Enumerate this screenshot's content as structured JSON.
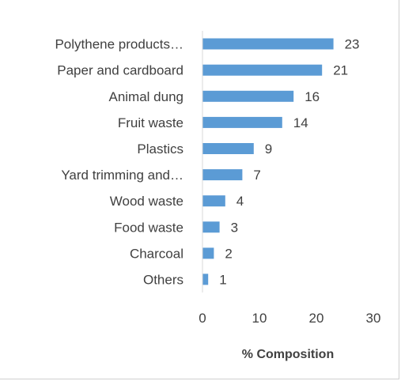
{
  "chart_data": {
    "type": "bar",
    "orientation": "horizontal",
    "categories": [
      "Polythene products…",
      "Paper and cardboard",
      "Animal dung",
      "Fruit waste",
      "Plastics",
      "Yard trimming and…",
      "Wood waste",
      "Food waste",
      "Charcoal",
      "Others"
    ],
    "values": [
      23,
      21,
      16,
      14,
      9,
      7,
      4,
      3,
      2,
      1
    ],
    "title": "",
    "xlabel": "% Composition",
    "ylabel": "",
    "xlim": [
      0,
      30
    ],
    "xticks": [
      0,
      10,
      20,
      30
    ],
    "grid": false,
    "legend": "none",
    "bar_color": "#5b9bd5",
    "data_labels": true
  }
}
